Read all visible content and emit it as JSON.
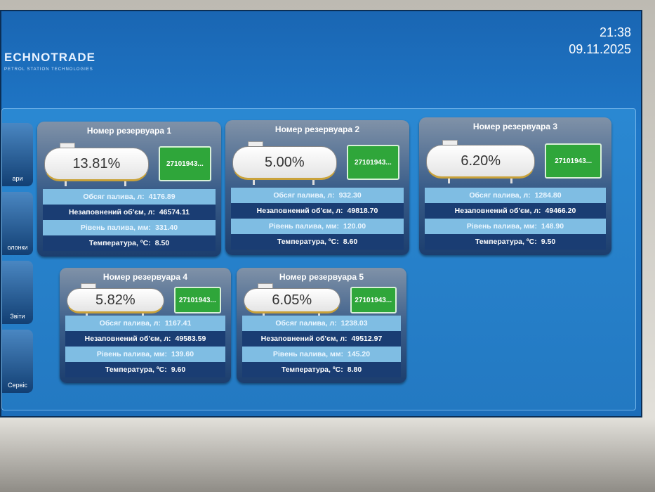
{
  "header": {
    "brand": "ECHNOTRADE",
    "tagline": "PETROL STATION TECHNOLOGIES",
    "time": "21:38",
    "date": "09.11.2025"
  },
  "sidebar": [
    "ари",
    "олонки",
    "Звіти",
    "Сервіс"
  ],
  "tanks": [
    {
      "title": "Номер резервуара 1",
      "percent": "13.81%",
      "code": "27101943...",
      "rows": [
        {
          "label": "Обсяг палива, л:",
          "value": "4176.89"
        },
        {
          "label": "Незаповнений об'єм, л:",
          "value": "46574.11"
        },
        {
          "label": "Рівень палива, мм:",
          "value": "331.40"
        },
        {
          "label": "Температура, ºC:",
          "value": "8.50"
        }
      ]
    },
    {
      "title": "Номер резервуара 2",
      "percent": "5.00%",
      "code": "27101943...",
      "rows": [
        {
          "label": "Обсяг палива, л:",
          "value": "932.30"
        },
        {
          "label": "Незаповнений об'єм, л:",
          "value": "49818.70"
        },
        {
          "label": "Рівень палива, мм:",
          "value": "120.00"
        },
        {
          "label": "Температура, ºC:",
          "value": "8.60"
        }
      ]
    },
    {
      "title": "Номер резервуара 3",
      "percent": "6.20%",
      "code": "27101943...",
      "rows": [
        {
          "label": "Обсяг палива, л:",
          "value": "1284.80"
        },
        {
          "label": "Незаповнений об'єм, л:",
          "value": "49466.20"
        },
        {
          "label": "Рівень палива, мм:",
          "value": "148.90"
        },
        {
          "label": "Температура, ºC:",
          "value": "9.50"
        }
      ]
    },
    {
      "title": "Номер резервуара 4",
      "percent": "5.82%",
      "code": "27101943...",
      "rows": [
        {
          "label": "Обсяг палива, л:",
          "value": "1167.41"
        },
        {
          "label": "Незаповнений об'єм, л:",
          "value": "49583.59"
        },
        {
          "label": "Рівень палива, мм:",
          "value": "139.60"
        },
        {
          "label": "Температура, ºC:",
          "value": "9.60"
        }
      ]
    },
    {
      "title": "Номер резервуара 5",
      "percent": "6.05%",
      "code": "27101943...",
      "rows": [
        {
          "label": "Обсяг палива, л:",
          "value": "1238.03"
        },
        {
          "label": "Незаповнений об'єм, л:",
          "value": "49512.97"
        },
        {
          "label": "Рівень палива, мм:",
          "value": "145.20"
        },
        {
          "label": "Температура, ºC:",
          "value": "8.80"
        }
      ]
    }
  ]
}
